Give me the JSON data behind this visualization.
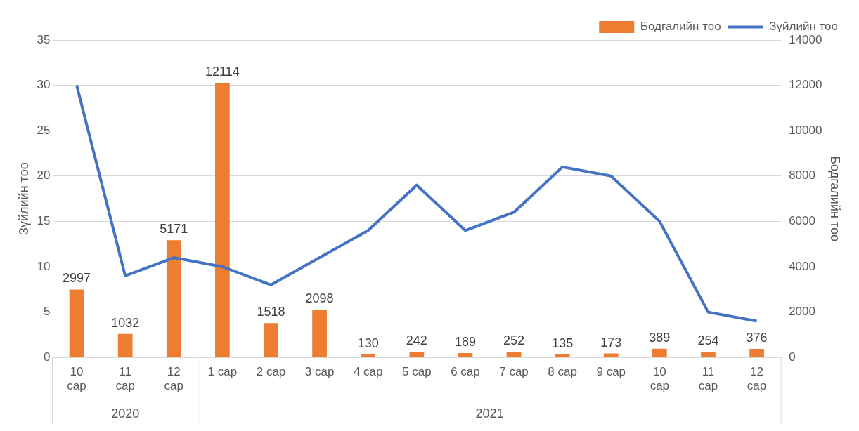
{
  "chart_data": {
    "type": "bar",
    "categories": [
      "10 сар",
      "11 сар",
      "12 сар",
      "1 сар",
      "2 сар",
      "3 сар",
      "4 сар",
      "5 сар",
      "6 сар",
      "7 сар",
      "8 сар",
      "9 сар",
      "10 сар",
      "11 сар",
      "12 сар"
    ],
    "series": [
      {
        "name": "Бодгалийн тоо",
        "axis": "y2",
        "color": "#ed7d31",
        "values": [
          2997,
          1032,
          5171,
          12114,
          1518,
          2098,
          130,
          242,
          189,
          252,
          135,
          173,
          389,
          254,
          376
        ],
        "value_labels": [
          "2997",
          "1032",
          "5171",
          "12114",
          "1518",
          "2098",
          "130",
          "242",
          "189",
          "252",
          "135",
          "173",
          "389",
          "254",
          "376"
        ]
      },
      {
        "name": "Зүйлийн тоо",
        "type": "line",
        "color": "#4472c4",
        "values": [
          30,
          9,
          11,
          10,
          8,
          11,
          14,
          19,
          14,
          16,
          21,
          20,
          15,
          5,
          4
        ]
      }
    ],
    "ylabel": "Зүйлийн тоо",
    "y2label": "Бодгалийн тоо",
    "ylim": [
      0,
      35
    ],
    "yticks": [
      0,
      5,
      10,
      15,
      20,
      25,
      30,
      35
    ],
    "y2lim": [
      0,
      14000
    ],
    "y2ticks": [
      0,
      2000,
      4000,
      6000,
      8000,
      10000,
      12000,
      14000
    ],
    "grid": "y",
    "legend": "top right",
    "marker": "none",
    "annotations": [
      "2020",
      "2021"
    ]
  }
}
